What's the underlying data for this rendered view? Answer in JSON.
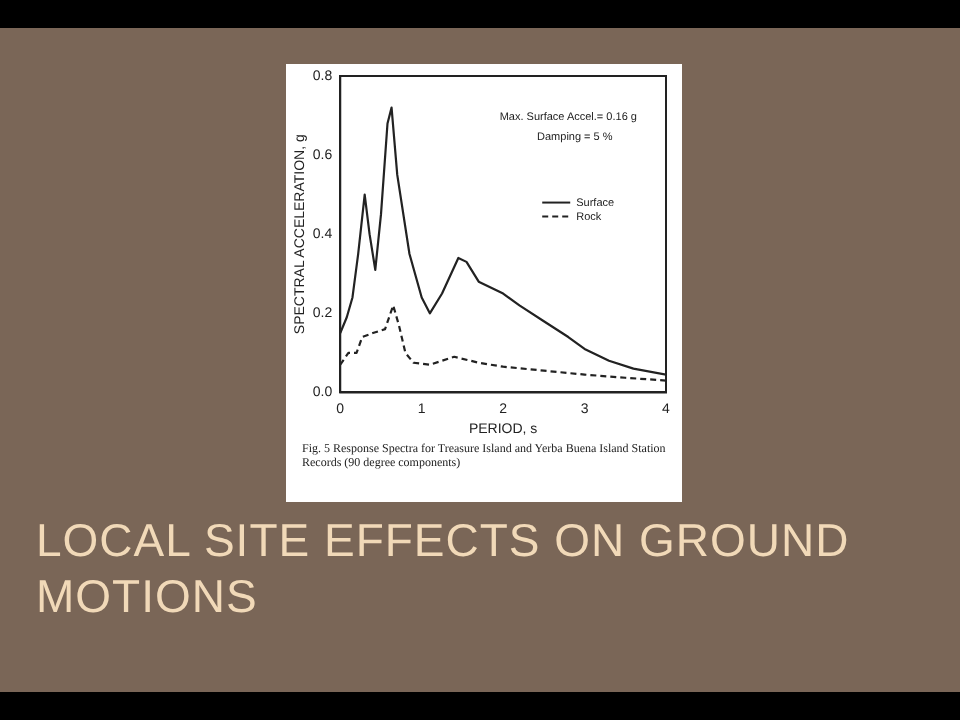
{
  "chart_data": {
    "type": "line",
    "title": "LOCAL SITE EFFECTS ON GROUND MOTIONS",
    "xlabel": "PERIOD, s",
    "ylabel": "SPECTRAL ACCELERATION, g",
    "annotations": [
      "Max. Surface Accel.= 0.16 g",
      "Damping = 5 %",
      "Fig. 5    Response Spectra for Treasure Island and Yerba Buena Island Station Records (90 degree components)"
    ],
    "xlim": [
      0,
      4
    ],
    "xticks": [
      0,
      1,
      2,
      3,
      4
    ],
    "ylim": [
      0,
      0.8
    ],
    "yticks": [
      {
        "value": 0,
        "label": "0.0"
      },
      {
        "value": 0.2,
        "label": "0.2"
      },
      {
        "value": 0.4,
        "label": "0.4"
      },
      {
        "value": 0.6,
        "label": "0.6"
      },
      {
        "value": 0.8,
        "label": "0.8"
      }
    ],
    "grid": false,
    "legend": "right",
    "marker": "none",
    "series": [
      {
        "name": "Surface",
        "color": "#222222",
        "line_style": "solid",
        "x": [
          0,
          0.08,
          0.15,
          0.22,
          0.3,
          0.36,
          0.43,
          0.5,
          0.58,
          0.63,
          0.7,
          0.85,
          1.0,
          1.1,
          1.25,
          1.45,
          1.55,
          1.7,
          2.0,
          2.2,
          2.5,
          2.8,
          3.0,
          3.3,
          3.6,
          4.0
        ],
        "values": [
          0.15,
          0.19,
          0.24,
          0.35,
          0.5,
          0.4,
          0.31,
          0.45,
          0.68,
          0.72,
          0.55,
          0.35,
          0.24,
          0.2,
          0.25,
          0.34,
          0.33,
          0.28,
          0.25,
          0.22,
          0.18,
          0.14,
          0.11,
          0.08,
          0.06,
          0.045
        ]
      },
      {
        "name": "Rock",
        "color": "#222222",
        "line_style": "dashed",
        "x": [
          0,
          0.1,
          0.2,
          0.27,
          0.4,
          0.55,
          0.65,
          0.72,
          0.8,
          0.9,
          1.1,
          1.25,
          1.4,
          1.7,
          2.0,
          2.5,
          3.0,
          3.5,
          4.0
        ],
        "values": [
          0.07,
          0.1,
          0.1,
          0.14,
          0.15,
          0.16,
          0.22,
          0.17,
          0.1,
          0.075,
          0.07,
          0.08,
          0.09,
          0.075,
          0.065,
          0.055,
          0.045,
          0.037,
          0.03
        ]
      }
    ]
  }
}
